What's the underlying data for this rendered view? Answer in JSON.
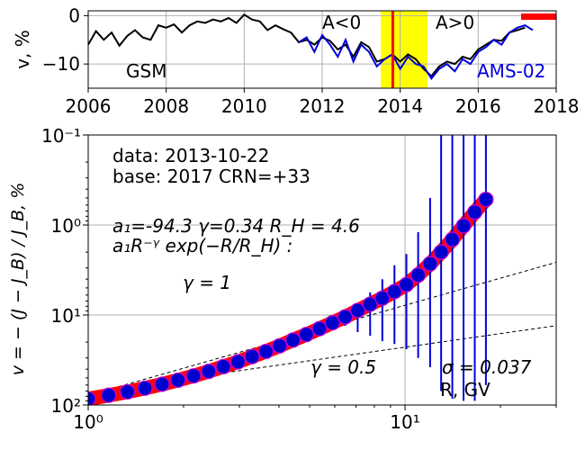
{
  "chart_data": [
    {
      "type": "line",
      "ylabel": "v, %",
      "xlim": [
        2006,
        2018
      ],
      "ylim": [
        -15,
        1
      ],
      "xticks": [
        2006,
        2008,
        2010,
        2012,
        2014,
        2016,
        2018
      ],
      "yticks": [
        0,
        -10
      ],
      "grid": true,
      "series": [
        {
          "name": "GSM",
          "color": "#000000",
          "x": [
            2006.0,
            2006.2,
            2006.4,
            2006.6,
            2006.8,
            2007.0,
            2007.2,
            2007.4,
            2007.6,
            2007.8,
            2008.0,
            2008.2,
            2008.4,
            2008.6,
            2008.8,
            2009.0,
            2009.2,
            2009.4,
            2009.6,
            2009.8,
            2010.0,
            2010.2,
            2010.4,
            2010.6,
            2010.8,
            2011.0,
            2011.2,
            2011.4,
            2011.6,
            2011.8,
            2012.0,
            2012.2,
            2012.4,
            2012.6,
            2012.8,
            2013.0,
            2013.2,
            2013.4,
            2013.6,
            2013.8,
            2014.0,
            2014.2,
            2014.4,
            2014.6,
            2014.8,
            2015.0,
            2015.2,
            2015.4,
            2015.6,
            2015.8,
            2016.0,
            2016.2,
            2016.4,
            2016.6,
            2016.8,
            2017.0,
            2017.2
          ],
          "y": [
            -6.0,
            -3.2,
            -5.0,
            -3.5,
            -6.2,
            -4.2,
            -3.0,
            -4.5,
            -5.0,
            -2.0,
            -2.5,
            -1.8,
            -3.5,
            -2.0,
            -1.2,
            -1.5,
            -0.8,
            -1.2,
            -0.5,
            -1.5,
            0.2,
            -0.8,
            -1.2,
            -3.0,
            -2.0,
            -2.8,
            -3.5,
            -5.5,
            -5.0,
            -6.0,
            -4.5,
            -5.2,
            -7.0,
            -6.0,
            -8.5,
            -5.5,
            -6.5,
            -9.5,
            -9.0,
            -8.0,
            -9.5,
            -8.0,
            -9.0,
            -11.0,
            -12.5,
            -10.5,
            -9.5,
            -10.0,
            -8.5,
            -9.0,
            -7.0,
            -6.0,
            -5.0,
            -5.2,
            -3.5,
            -3.0,
            -2.5
          ]
        },
        {
          "name": "AMS-02",
          "color": "#0000dd",
          "x": [
            2011.4,
            2011.6,
            2011.8,
            2012.0,
            2012.2,
            2012.4,
            2012.6,
            2012.8,
            2013.0,
            2013.2,
            2013.4,
            2013.6,
            2013.8,
            2014.0,
            2014.2,
            2014.4,
            2014.6,
            2014.8,
            2015.0,
            2015.2,
            2015.4,
            2015.6,
            2015.8,
            2016.0,
            2016.2,
            2016.4,
            2016.6,
            2016.8,
            2017.0,
            2017.2,
            2017.4
          ],
          "y": [
            -5.5,
            -4.5,
            -7.5,
            -4.0,
            -6.0,
            -8.5,
            -5.0,
            -9.5,
            -6.0,
            -7.5,
            -10.5,
            -9.0,
            -8.0,
            -11.0,
            -8.5,
            -10.0,
            -10.5,
            -13.0,
            -11.0,
            -10.0,
            -11.5,
            -9.0,
            -10.0,
            -7.5,
            -6.5,
            -5.0,
            -6.0,
            -3.5,
            -2.5,
            -2.0,
            -3.0
          ]
        }
      ],
      "annotations": {
        "gsm_label": "GSM",
        "ams_label": "AMS-02",
        "a_neg_label": "A<0",
        "a_pos_label": "A>0",
        "yellow_band": [
          2013.5,
          2014.7
        ],
        "red_marker_date": 2013.81,
        "red_bar": [
          2017.1,
          2018.0
        ],
        "red_bar_y": -0.2
      }
    },
    {
      "type": "scatter",
      "ylabel": "v = − (J − J_B) / J_B, %",
      "xlabel": "R, GV",
      "xscale": "log",
      "yscale": "log",
      "y_inverted": true,
      "xlim": [
        1,
        30
      ],
      "ylim": [
        0.1,
        100
      ],
      "yticks_labels": [
        "10⁻¹",
        "10⁰",
        "10¹",
        "10²"
      ],
      "xticks_labels": [
        "10⁰",
        "10¹"
      ],
      "grid": true,
      "points": {
        "R": [
          1.0,
          1.16,
          1.33,
          1.51,
          1.71,
          1.92,
          2.15,
          2.4,
          2.67,
          2.97,
          3.29,
          3.64,
          4.02,
          4.43,
          4.88,
          5.37,
          5.9,
          6.47,
          7.09,
          7.76,
          8.48,
          9.26,
          10.1,
          11.0,
          12.0,
          13.0,
          14.1,
          15.3,
          16.6,
          18.0
        ],
        "v": [
          85.5,
          78.0,
          71.5,
          65.0,
          58.8,
          53.0,
          47.5,
          42.3,
          37.5,
          33.1,
          29.0,
          25.4,
          22.0,
          19.0,
          16.5,
          14.2,
          12.2,
          10.5,
          8.9,
          7.6,
          6.5,
          5.5,
          4.6,
          3.6,
          2.7,
          2.0,
          1.45,
          1.02,
          0.72,
          0.52
        ],
        "err_low": [
          null,
          null,
          null,
          null,
          null,
          null,
          null,
          null,
          null,
          null,
          null,
          null,
          null,
          null,
          null,
          null,
          null,
          13.2,
          8.6,
          5.6,
          4.0,
          2.8,
          2.1,
          1.2,
          0.5,
          0.1,
          0.1,
          0.1,
          0.1,
          0.1
        ],
        "err_high": [
          null,
          null,
          null,
          null,
          null,
          null,
          null,
          null,
          null,
          null,
          null,
          null,
          null,
          null,
          null,
          null,
          null,
          12.5,
          15.5,
          17.0,
          19.5,
          21.0,
          24.0,
          30.0,
          38.0,
          70.0,
          85.0,
          90.0,
          90.0,
          60.0
        ]
      },
      "fit": {
        "a1": -94.3,
        "gamma": 0.34,
        "RH": 4.6,
        "color": "#ff0000"
      },
      "ref_lines": [
        {
          "gamma": 1,
          "v_at_1": 78.0
        },
        {
          "gamma": 0.5,
          "v_at_1": 72.0
        }
      ],
      "text": {
        "data_line": "data: 2013-10-22",
        "base_line": "base: 2017   CRN=+33",
        "params_line": "a₁=-94.3  γ=0.34  R_H = 4.6",
        "formula_line": "a₁R⁻ᵞ exp(−R/R_H) :",
        "gamma1_label": "γ = 1",
        "gamma05_label": "γ = 0.5",
        "sigma_label": "σ = 0.037"
      }
    }
  ]
}
